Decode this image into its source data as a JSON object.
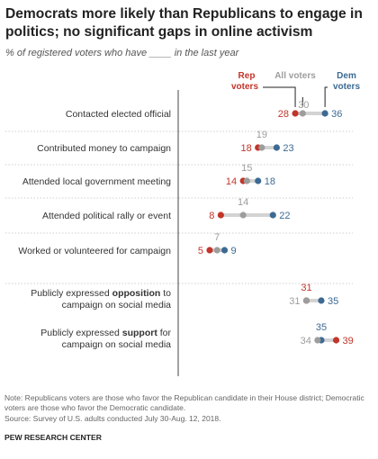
{
  "title": "Democrats more likely than Republicans to engage in politics; no significant gaps in online activism",
  "subtitle": "% of registered voters who have ____ in the last year",
  "colors": {
    "rep": "#c2352a",
    "all": "#9d9d9d",
    "dem": "#3d6a93",
    "connector": "#d3d3d3"
  },
  "legend": {
    "rep": [
      "Rep",
      "voters"
    ],
    "all": "All voters",
    "dem": [
      "Dem",
      "voters"
    ]
  },
  "chart_data": {
    "type": "dot",
    "series": [
      {
        "name": "Rep voters",
        "key": "rep"
      },
      {
        "name": "All voters",
        "key": "all"
      },
      {
        "name": "Dem voters",
        "key": "dem"
      }
    ],
    "categories": [
      {
        "label": [
          "Contacted elected official"
        ],
        "rep": 28,
        "all": 30,
        "dem": 36
      },
      {
        "label": [
          "Contributed money to campaign"
        ],
        "rep": 18,
        "all": 19,
        "dem": 23
      },
      {
        "label": [
          "Attended local government meeting"
        ],
        "rep": 14,
        "all": 15,
        "dem": 18
      },
      {
        "label": [
          "Attended political rally or event"
        ],
        "rep": 8,
        "all": 14,
        "dem": 22
      },
      {
        "label": [
          "Worked or volunteered for campaign"
        ],
        "rep": 5,
        "all": 7,
        "dem": 9
      },
      {
        "label": [
          [
            "Publicly expressed ",
            false
          ],
          [
            "opposition",
            true
          ],
          [
            " to",
            false
          ]
        ],
        "label2": "campaign on social media",
        "rep": 31,
        "all": 31,
        "dem": 35
      },
      {
        "label": [
          [
            "Publicly expressed ",
            false
          ],
          [
            "support",
            true
          ],
          [
            " for",
            false
          ]
        ],
        "label2": "campaign on social media",
        "rep": 39,
        "all": 34,
        "dem": 35
      }
    ]
  },
  "note": "Note: Republicans voters are those who favor the Republican candidate in their House district; Democratic voters are those who favor the Democratic candidate.",
  "source": "Source: Survey of U.S. adults conducted July 30-Aug. 12, 2018.",
  "brand": "PEW RESEARCH CENTER"
}
